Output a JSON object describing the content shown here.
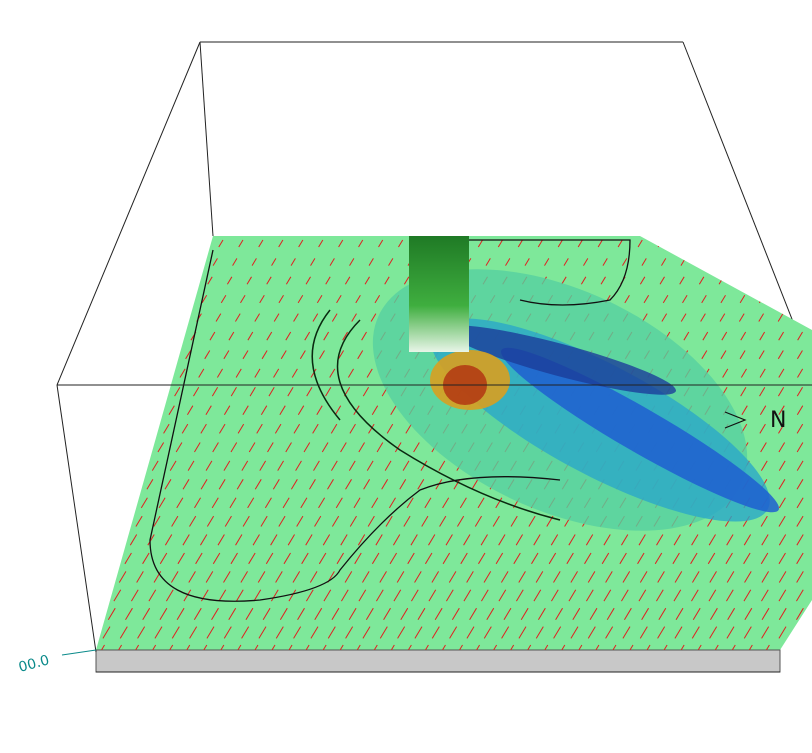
{
  "labels": {
    "base_value": "00.0",
    "north": "N"
  }
}
